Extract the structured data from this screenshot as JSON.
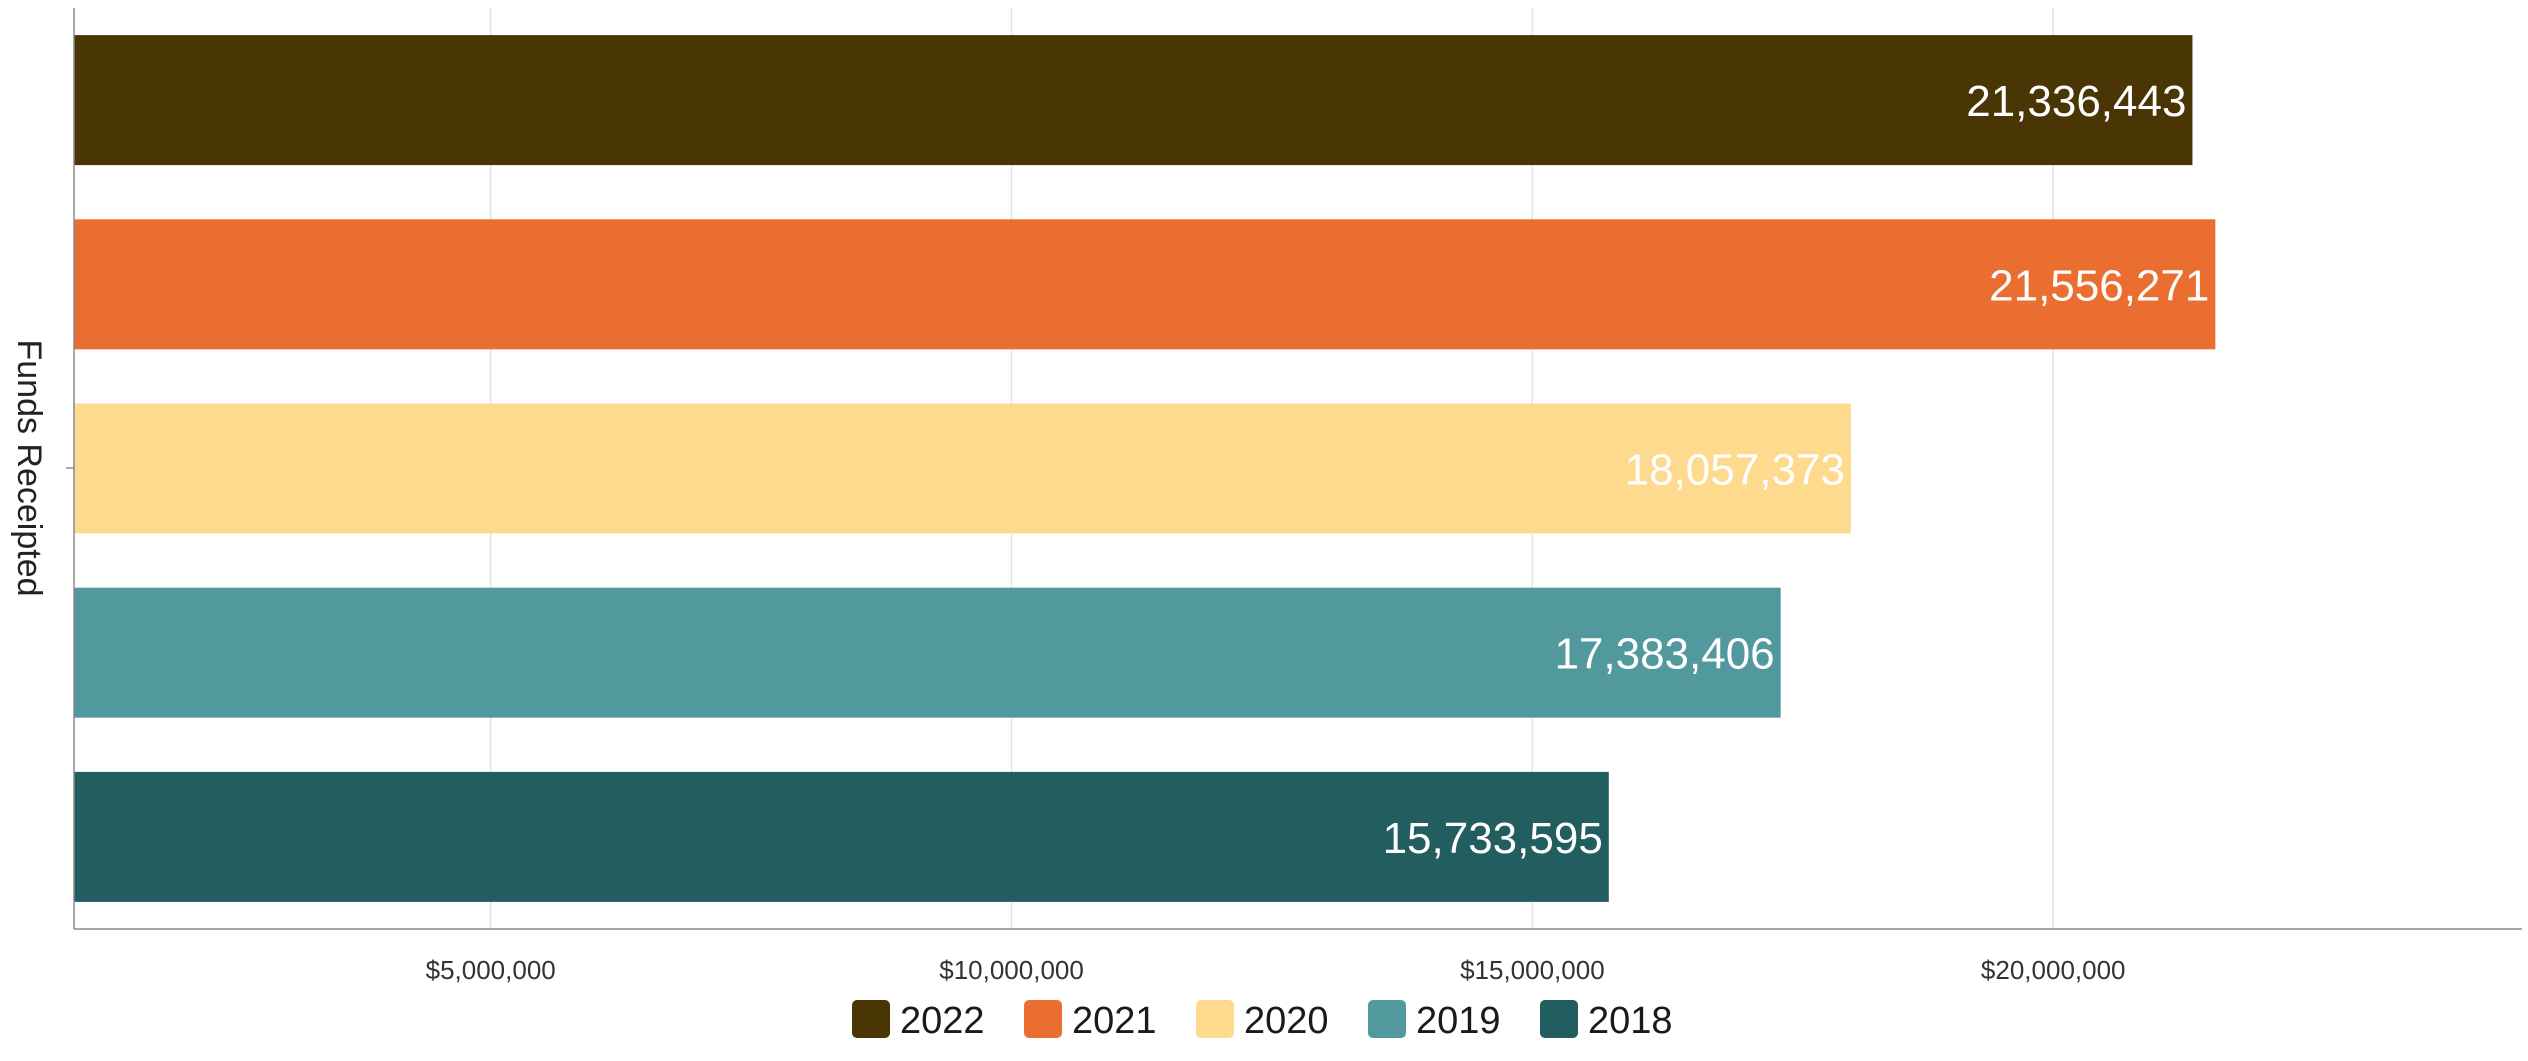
{
  "chart_data": {
    "type": "bar",
    "orientation": "horizontal",
    "ylabel": "Funds Receipted",
    "xlabel": "",
    "title": "",
    "xlim": [
      1000000,
      24500000
    ],
    "xticks": [
      5000000,
      10000000,
      15000000,
      20000000
    ],
    "xtick_labels": [
      "$5,000,000",
      "$10,000,000",
      "$15,000,000",
      "$20,000,000"
    ],
    "grid": "vertical",
    "legend_position": "bottom",
    "series": [
      {
        "name": "2022",
        "value": 21336443,
        "label": "21,336,443",
        "color": "#4a3505"
      },
      {
        "name": "2021",
        "value": 21556271,
        "label": "21,556,271",
        "color": "#e96e30"
      },
      {
        "name": "2020",
        "value": 18057373,
        "label": "18,057,373",
        "color": "#fdda8e"
      },
      {
        "name": "2019",
        "value": 17383406,
        "label": "17,383,406",
        "color": "#52999d"
      },
      {
        "name": "2018",
        "value": 15733595,
        "label": "15,733,595",
        "color": "#225d5f"
      }
    ]
  }
}
